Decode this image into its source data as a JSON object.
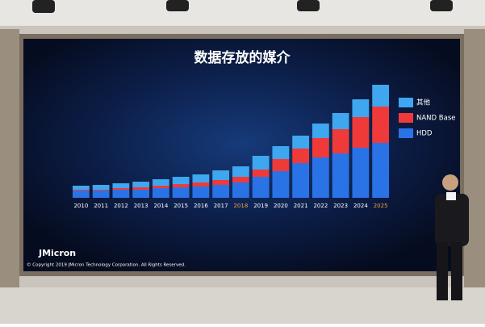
{
  "chart_data": {
    "type": "stacked_bar",
    "title": "数据存放的媒介",
    "categories": [
      "2010",
      "2011",
      "2012",
      "2013",
      "2014",
      "2015",
      "2016",
      "2017",
      "2018",
      "2019",
      "2020",
      "2021",
      "2022",
      "2023",
      "2024",
      "2025"
    ],
    "category_label_colors": [
      "#ffffff",
      "#ffffff",
      "#ffffff",
      "#ffffff",
      "#ffffff",
      "#ffffff",
      "#ffffff",
      "#ffffff",
      "#f0a040",
      "#ffffff",
      "#ffffff",
      "#ffffff",
      "#ffffff",
      "#ffffff",
      "#ffffff",
      "#f0a040"
    ],
    "series": [
      {
        "name": "其他",
        "color": "#3ea7ef",
        "values": [
          5,
          6,
          6,
          7,
          8,
          9,
          10,
          12,
          13,
          17,
          16,
          16,
          18,
          20,
          22,
          27
        ]
      },
      {
        "name": "NAND Base",
        "color": "#f03a3a",
        "values": [
          1,
          1,
          2,
          3,
          3,
          4,
          5,
          6,
          7,
          9,
          15,
          18,
          24,
          30,
          38,
          45
        ]
      },
      {
        "name": "HDD",
        "color": "#2a73e6",
        "values": [
          9,
          9,
          10,
          10,
          12,
          13,
          14,
          16,
          19,
          26,
          33,
          43,
          50,
          55,
          62,
          68
        ]
      }
    ],
    "legend": "right",
    "logo": "JMicron",
    "footer": "© Copyright 2019 JMicron Technology Corporation. All Rights Reserved."
  }
}
